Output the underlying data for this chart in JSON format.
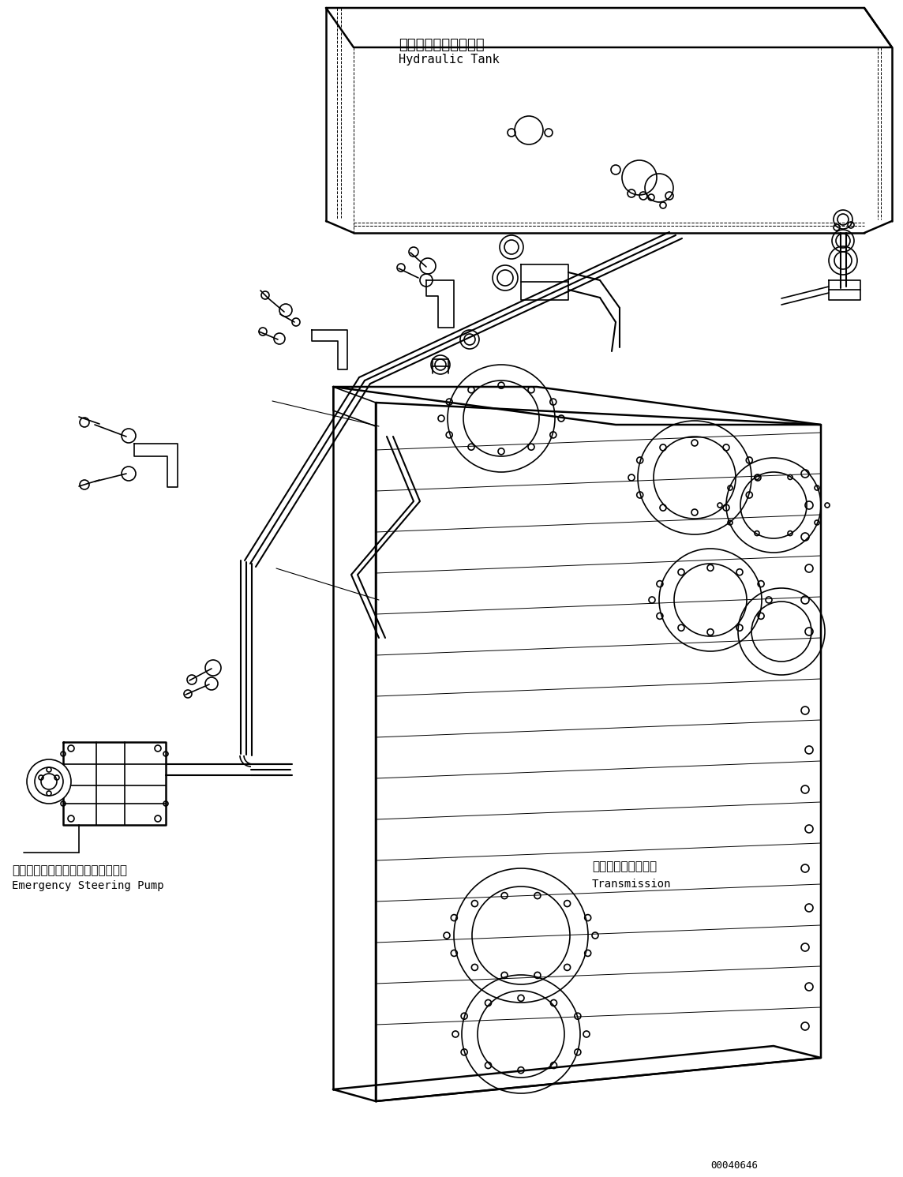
{
  "bg_color": "#ffffff",
  "line_color": "#000000",
  "lw_main": 1.2,
  "lw_thick": 1.8,
  "lw_thin": 0.7,
  "fig_width": 11.44,
  "fig_height": 14.91,
  "dpi": 100,
  "labels": {
    "hydraulic_tank_jp": "ハイドロリックタンク",
    "hydraulic_tank_en": "Hydraulic Tank",
    "emergency_pump_jp": "エマージェンシステアリングポンプ",
    "emergency_pump_en": "Emergency Steering Pump",
    "transmission_jp": "トランスミッション",
    "transmission_en": "Transmission",
    "part_number": "00040646"
  }
}
